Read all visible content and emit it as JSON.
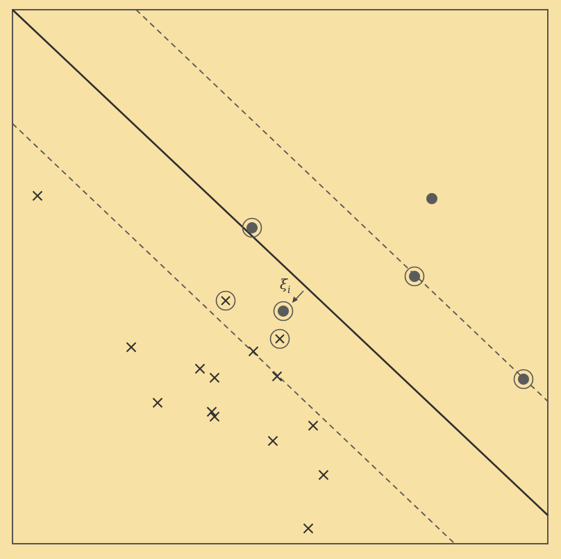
{
  "diagram": {
    "annotation": "ξ",
    "annotation_subscript": "i",
    "colors": {
      "background": "#f8e1a4",
      "ink": "#3f3f3f",
      "marker": "#5b5b5b"
    }
  }
}
